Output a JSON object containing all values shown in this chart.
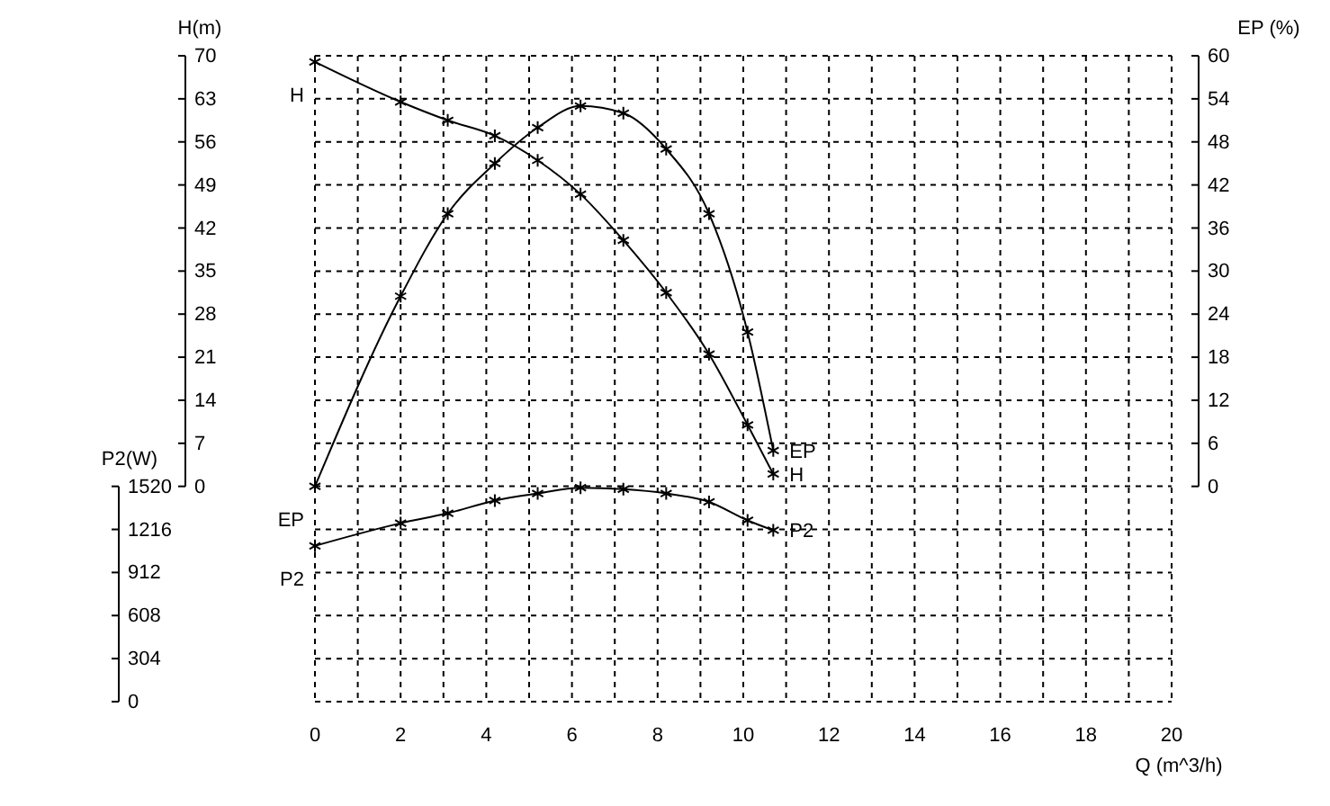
{
  "chart_data": {
    "type": "line",
    "xlabel": "Q (m^3/h)",
    "ylabel": "H(m)",
    "y2label": "EP (%)",
    "y3label": "P2(W)",
    "x": [
      0,
      2.0,
      3.1,
      4.2,
      5.2,
      6.2,
      7.2,
      8.2,
      9.2,
      10.1,
      10.7
    ],
    "series": [
      {
        "name": "H",
        "color": "#000000",
        "values": [
          69,
          62.5,
          59.5,
          57,
          53,
          47.5,
          40,
          31.5,
          21.5,
          10,
          2
        ]
      },
      {
        "name": "EP",
        "color": "#000000",
        "axis": "y2",
        "values": [
          0,
          26.5,
          38,
          45,
          50,
          53,
          52,
          47,
          38,
          21.5,
          5
        ]
      },
      {
        "name": "P2",
        "color": "#000000",
        "axis": "y3",
        "values": [
          1100,
          1260,
          1330,
          1420,
          1470,
          1510,
          1500,
          1470,
          1410,
          1280,
          1210
        ]
      }
    ],
    "xlim": [
      0,
      20
    ],
    "xticks": [
      0,
      {
        "value": 1,
        "label": null
      },
      2,
      {
        "value": 3,
        "label": null
      },
      4,
      {
        "value": 5,
        "label": null
      },
      6,
      {
        "value": 7,
        "label": null
      },
      8,
      {
        "value": 9,
        "label": null
      },
      10,
      {
        "value": 11,
        "label": null
      },
      12,
      {
        "value": 13,
        "label": null
      },
      14,
      {
        "value": 15,
        "label": null
      },
      16,
      {
        "value": 17,
        "label": null
      },
      18,
      {
        "value": 19,
        "label": null
      },
      20
    ],
    "ylim": [
      -35,
      70
    ],
    "yticks": [
      0,
      7,
      14,
      21,
      28,
      35,
      42,
      49,
      56,
      63,
      70
    ],
    "y2lim": [
      -30,
      60
    ],
    "y2ticks": [
      0,
      6,
      12,
      18,
      24,
      30,
      36,
      42,
      48,
      54,
      60
    ],
    "y3lim": [
      0,
      4560
    ],
    "y3ticks": [
      0,
      304,
      608,
      912,
      1216,
      1520
    ],
    "grid": true,
    "marker": "cross",
    "line_style": "solid"
  }
}
